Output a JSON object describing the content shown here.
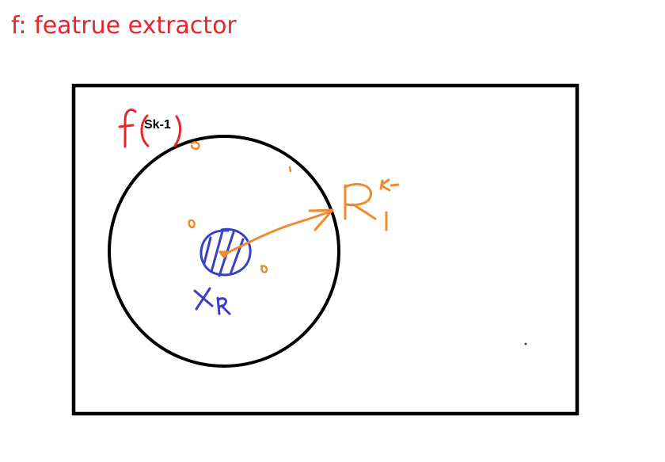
{
  "title": {
    "text": "f: featrue extractor",
    "color": "#e8242c"
  },
  "diagram": {
    "frame_color": "#000000",
    "circle_color": "#000000",
    "inner_color": "#3a3fc8",
    "arrow_color": "#f08a2a",
    "function_color": "#e8242c",
    "function_arg": "Sk-1",
    "handwritten_labels": {
      "center": "x_k",
      "radius": "R_1^{k-1}",
      "function": "f("
    }
  }
}
